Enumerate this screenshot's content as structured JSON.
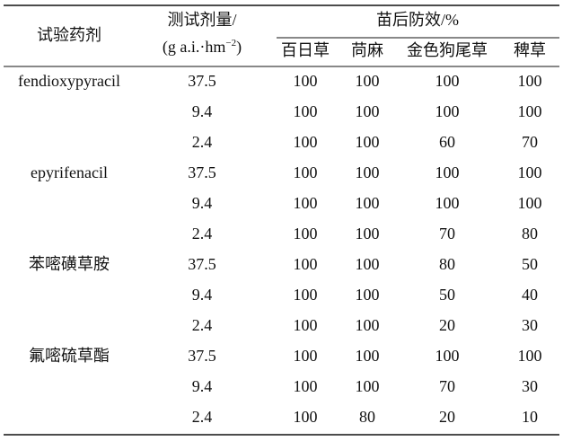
{
  "table": {
    "header": {
      "agent": "试验药剂",
      "dose_title": "测试剂量/",
      "dose_unit": [
        "(g a.i.·hm",
        "−2",
        ")"
      ],
      "efficacy": "苗后防效/%",
      "weeds": [
        "百日草",
        "苘麻",
        "金色狗尾草",
        "稗草"
      ]
    },
    "groups": [
      {
        "name": "fendioxypyracil",
        "rows": [
          {
            "dose": 37.5,
            "values": [
              100,
              100,
              100,
              100
            ]
          },
          {
            "dose": 9.4,
            "values": [
              100,
              100,
              100,
              100
            ]
          },
          {
            "dose": 2.4,
            "values": [
              100,
              100,
              60,
              70
            ]
          }
        ]
      },
      {
        "name": "epyrifenacil",
        "rows": [
          {
            "dose": 37.5,
            "values": [
              100,
              100,
              100,
              100
            ]
          },
          {
            "dose": 9.4,
            "values": [
              100,
              100,
              100,
              100
            ]
          },
          {
            "dose": 2.4,
            "values": [
              100,
              100,
              70,
              80
            ]
          }
        ]
      },
      {
        "name": "苯嘧磺草胺",
        "rows": [
          {
            "dose": 37.5,
            "values": [
              100,
              100,
              80,
              50
            ]
          },
          {
            "dose": 9.4,
            "values": [
              100,
              100,
              50,
              40
            ]
          },
          {
            "dose": 2.4,
            "values": [
              100,
              100,
              20,
              30
            ]
          }
        ]
      },
      {
        "name": "氟嘧硫草酯",
        "rows": [
          {
            "dose": 37.5,
            "values": [
              100,
              100,
              100,
              100
            ]
          },
          {
            "dose": 9.4,
            "values": [
              100,
              100,
              70,
              30
            ]
          },
          {
            "dose": 2.4,
            "values": [
              100,
              80,
              20,
              10
            ]
          }
        ]
      }
    ]
  }
}
